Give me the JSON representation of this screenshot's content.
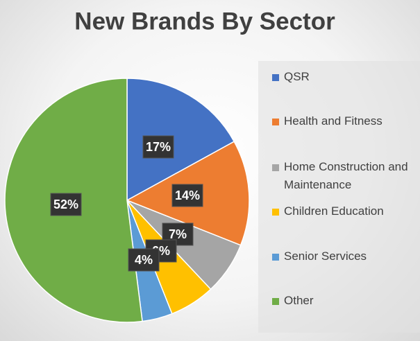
{
  "chart_data": {
    "type": "pie",
    "title": "New Brands By Sector",
    "categories": [
      "QSR",
      "Health and Fitness",
      "Home Construction and Maintenance",
      "Children Education",
      "Senior Services",
      "Other"
    ],
    "values": [
      17,
      14,
      7,
      6,
      4,
      52
    ],
    "value_labels": [
      "17%",
      "14%",
      "7%",
      "6%",
      "4%",
      "52%"
    ],
    "colors": [
      "#4472c4",
      "#ed7d31",
      "#a5a5a5",
      "#ffc000",
      "#5b9bd5",
      "#70ad47"
    ],
    "legend": "right"
  }
}
